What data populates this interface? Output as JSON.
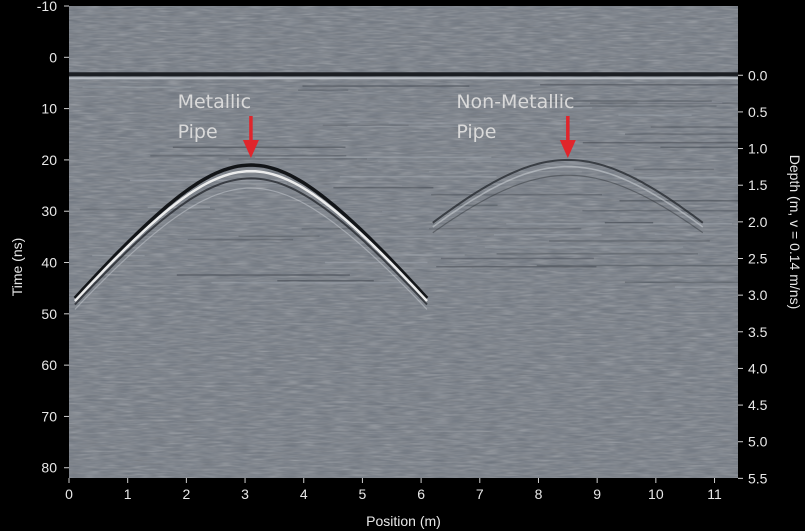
{
  "chart_data": {
    "type": "heatmap",
    "xlabel": "Position (m)",
    "ylabel": "Time (ns)",
    "y2label": "Depth (m, v = 0.14 m/ns)",
    "xlim": [
      0,
      11.4
    ],
    "ylim": [
      -10,
      82
    ],
    "x_ticks": [
      "0",
      "1",
      "2",
      "3",
      "4",
      "5",
      "6",
      "7",
      "8",
      "9",
      "10",
      "11"
    ],
    "y_ticks": [
      "-10",
      "0",
      "10",
      "20",
      "30",
      "40",
      "50",
      "60",
      "70",
      "80"
    ],
    "depth_ticks": [
      "0.0",
      "0.5",
      "1.0",
      "1.5",
      "2.0",
      "2.5",
      "3.0",
      "3.5",
      "4.0",
      "4.5",
      "5.0",
      "5.5"
    ],
    "depth_tick_values": [
      0.0,
      0.5,
      1.0,
      1.5,
      2.0,
      2.5,
      3.0,
      3.5,
      4.0,
      4.5,
      5.0,
      5.5
    ],
    "velocity_m_per_ns": 0.14,
    "surface_time_ns": 3.5,
    "grid": false,
    "colors": {
      "background": "#000000",
      "radargram": "#6f7680",
      "text": "#e8e8e8",
      "arrow": "#e0252b",
      "annotation": "#d9d9d9"
    },
    "annotations": [
      {
        "lines": [
          "Metallic",
          "Pipe"
        ],
        "x": 3.1,
        "y": 20
      },
      {
        "lines": [
          "Non-Metallic",
          "Pipe"
        ],
        "x": 8.5,
        "y": 20
      }
    ]
  }
}
